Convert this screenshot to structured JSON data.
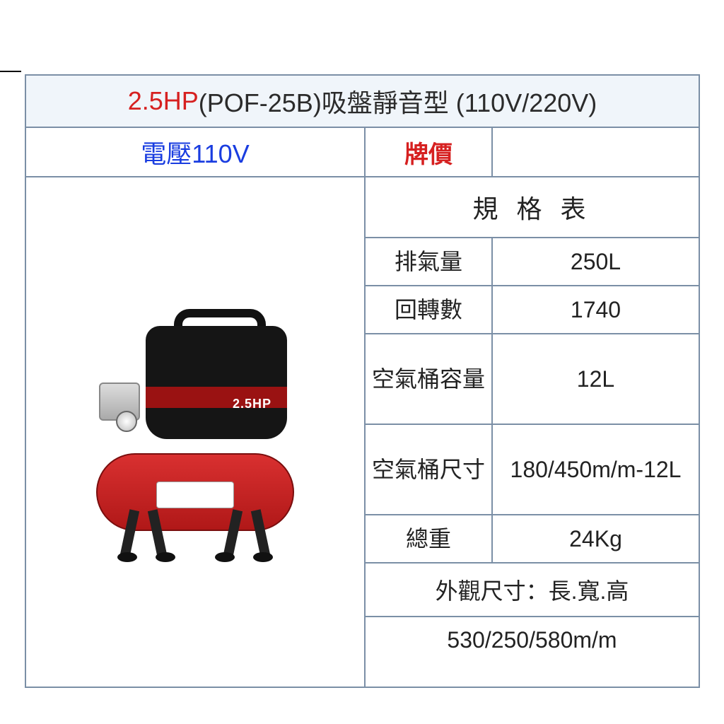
{
  "title": {
    "hp": "2.5HP",
    "rest": "(POF-25B)吸盤靜音型 (110V/220V)",
    "hp_color": "#d62020",
    "rest_color": "#2b2b2b",
    "bg_color": "#f0f5fa"
  },
  "header": {
    "voltage_label": "電壓110V",
    "voltage_color": "#1a3de0",
    "price_label": "牌價",
    "price_color": "#d62020",
    "price_value": ""
  },
  "spec": {
    "table_title": "規 格 表",
    "rows": [
      {
        "label": "排氣量",
        "value": "250L"
      },
      {
        "label": "回轉數",
        "value": "1740"
      },
      {
        "label": "空氣桶容量",
        "value": "12L"
      },
      {
        "label": "空氣桶尺寸",
        "value": "180/450m/m-12L"
      },
      {
        "label": "總重",
        "value": "24Kg"
      }
    ],
    "footer1": "外觀尺寸：長.寬.高",
    "footer2": "530/250/580m/m"
  },
  "product": {
    "hp_badge": "2.5HP",
    "tank_color": "#d93030",
    "motor_color": "#151515"
  },
  "border_color": "#7b8fa6",
  "font_size_title": 36,
  "font_size_body": 32
}
